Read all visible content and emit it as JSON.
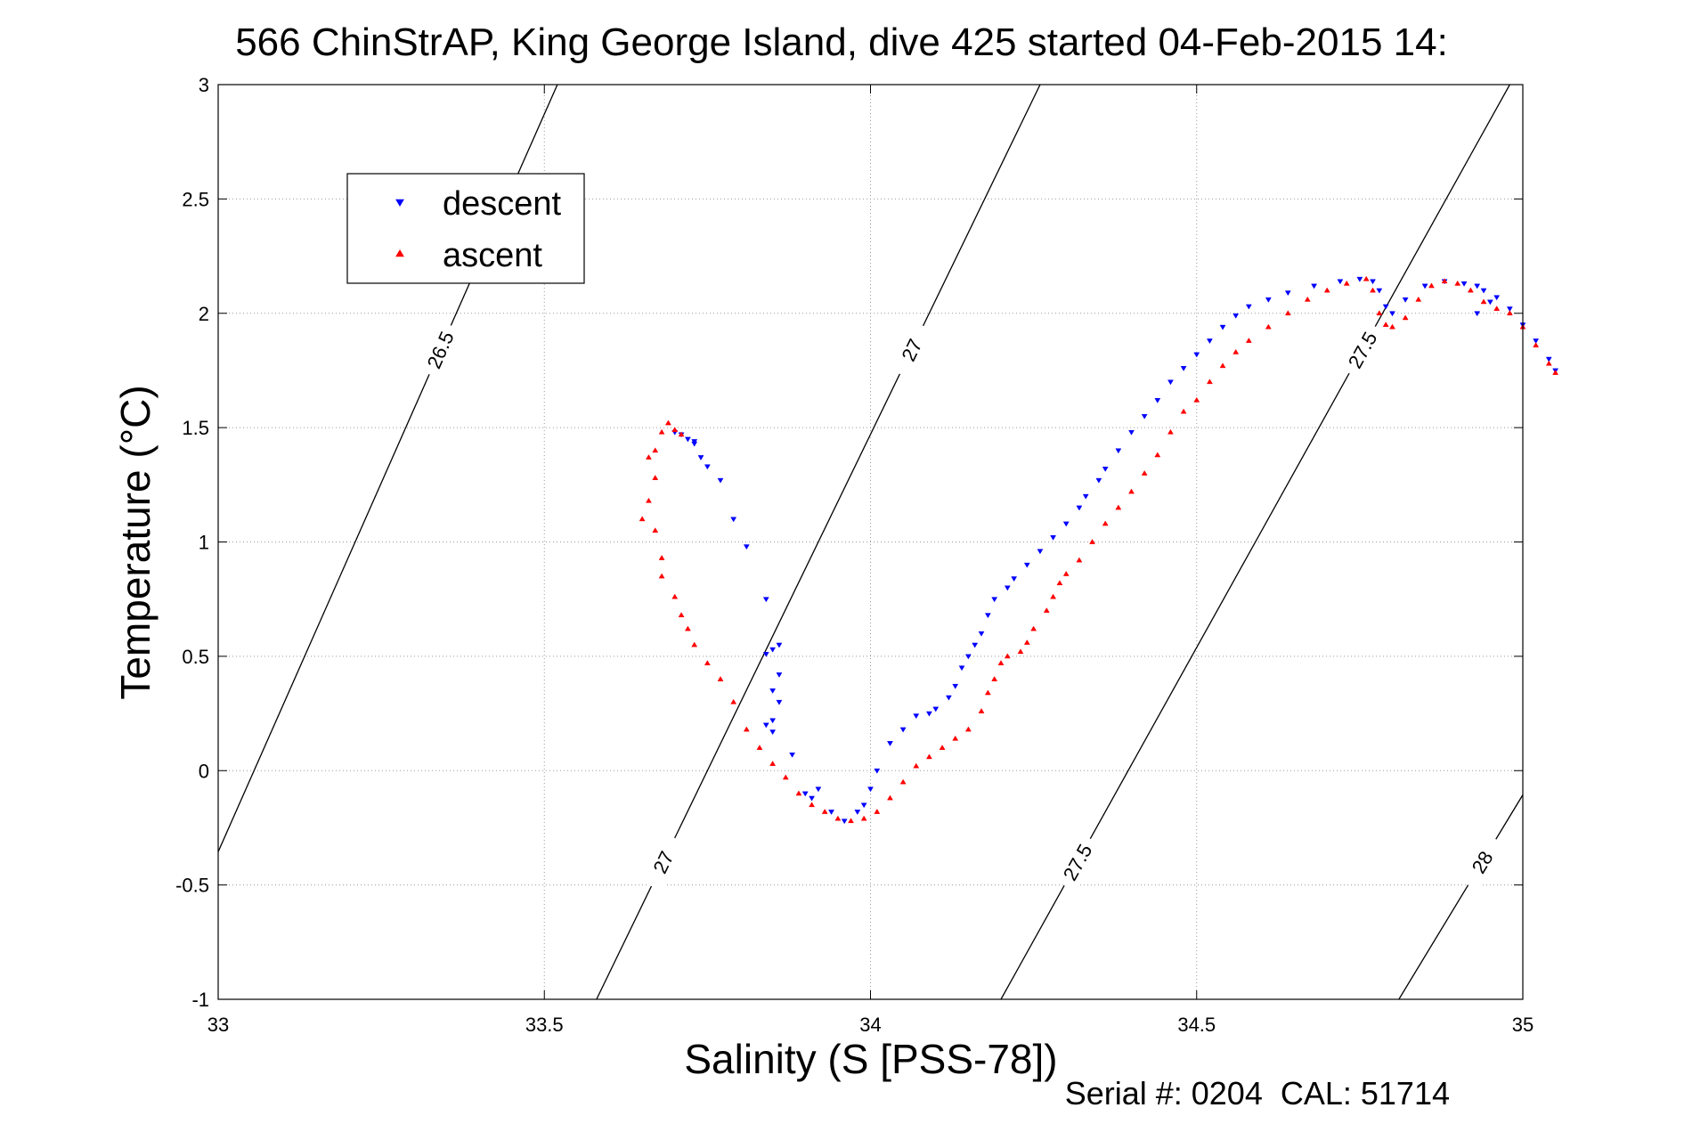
{
  "chart_data": {
    "type": "scatter",
    "title": "566 ChinStrAP, King George Island, dive 425 started 04-Feb-2015 14:",
    "xlabel": "Salinity (S [PSS-78])",
    "ylabel": "Temperature (°C)",
    "footer": "Serial #: 0204  CAL: 51714",
    "xlim": [
      33,
      35
    ],
    "ylim": [
      -1,
      3
    ],
    "xticks": [
      33,
      33.5,
      34,
      34.5,
      35
    ],
    "yticks": [
      -1,
      -0.5,
      0,
      0.5,
      1,
      1.5,
      2,
      2.5,
      3
    ],
    "grid": true,
    "legend_position": "top-left",
    "series": [
      {
        "name": "descent",
        "color": "#0000ff",
        "marker": "triangle-down",
        "points": [
          [
            33.7,
            1.48
          ],
          [
            33.71,
            1.47
          ],
          [
            33.72,
            1.45
          ],
          [
            33.73,
            1.44
          ],
          [
            33.73,
            1.43
          ],
          [
            33.74,
            1.37
          ],
          [
            33.75,
            1.33
          ],
          [
            33.77,
            1.27
          ],
          [
            33.79,
            1.1
          ],
          [
            33.81,
            0.98
          ],
          [
            33.84,
            0.75
          ],
          [
            33.85,
            0.53
          ],
          [
            33.84,
            0.51
          ],
          [
            33.86,
            0.55
          ],
          [
            33.86,
            0.42
          ],
          [
            33.85,
            0.35
          ],
          [
            33.86,
            0.3
          ],
          [
            33.85,
            0.22
          ],
          [
            33.84,
            0.2
          ],
          [
            33.85,
            0.17
          ],
          [
            33.88,
            0.07
          ],
          [
            33.9,
            -0.1
          ],
          [
            33.91,
            -0.12
          ],
          [
            33.92,
            -0.08
          ],
          [
            33.94,
            -0.18
          ],
          [
            33.96,
            -0.22
          ],
          [
            33.98,
            -0.18
          ],
          [
            33.99,
            -0.15
          ],
          [
            34.0,
            -0.08
          ],
          [
            34.01,
            0.0
          ],
          [
            34.03,
            0.12
          ],
          [
            34.05,
            0.18
          ],
          [
            34.07,
            0.24
          ],
          [
            34.09,
            0.25
          ],
          [
            34.1,
            0.27
          ],
          [
            34.12,
            0.32
          ],
          [
            34.13,
            0.37
          ],
          [
            34.14,
            0.45
          ],
          [
            34.15,
            0.5
          ],
          [
            34.16,
            0.55
          ],
          [
            34.17,
            0.6
          ],
          [
            34.18,
            0.68
          ],
          [
            34.19,
            0.75
          ],
          [
            34.21,
            0.8
          ],
          [
            34.22,
            0.84
          ],
          [
            34.24,
            0.9
          ],
          [
            34.26,
            0.96
          ],
          [
            34.28,
            1.02
          ],
          [
            34.3,
            1.08
          ],
          [
            34.32,
            1.15
          ],
          [
            34.33,
            1.2
          ],
          [
            34.35,
            1.27
          ],
          [
            34.36,
            1.32
          ],
          [
            34.38,
            1.4
          ],
          [
            34.4,
            1.48
          ],
          [
            34.42,
            1.55
          ],
          [
            34.44,
            1.62
          ],
          [
            34.46,
            1.7
          ],
          [
            34.48,
            1.76
          ],
          [
            34.5,
            1.82
          ],
          [
            34.52,
            1.88
          ],
          [
            34.54,
            1.94
          ],
          [
            34.56,
            1.99
          ],
          [
            34.58,
            2.03
          ],
          [
            34.61,
            2.06
          ],
          [
            34.64,
            2.09
          ],
          [
            34.68,
            2.12
          ],
          [
            34.72,
            2.14
          ],
          [
            34.75,
            2.15
          ],
          [
            34.77,
            2.14
          ],
          [
            34.78,
            2.1
          ],
          [
            34.79,
            2.03
          ],
          [
            34.8,
            2.0
          ],
          [
            34.82,
            2.06
          ],
          [
            34.85,
            2.12
          ],
          [
            34.88,
            2.14
          ],
          [
            34.91,
            2.13
          ],
          [
            34.93,
            2.12
          ],
          [
            34.94,
            2.1
          ],
          [
            34.95,
            2.05
          ],
          [
            34.93,
            2.0
          ],
          [
            34.96,
            2.07
          ],
          [
            34.98,
            2.02
          ],
          [
            35.0,
            1.95
          ],
          [
            35.02,
            1.88
          ],
          [
            35.04,
            1.8
          ],
          [
            35.05,
            1.75
          ]
        ]
      },
      {
        "name": "ascent",
        "color": "#ff0000",
        "marker": "triangle-up",
        "points": [
          [
            33.69,
            1.52
          ],
          [
            33.68,
            1.48
          ],
          [
            33.7,
            1.49
          ],
          [
            33.71,
            1.47
          ],
          [
            33.67,
            1.4
          ],
          [
            33.66,
            1.37
          ],
          [
            33.67,
            1.28
          ],
          [
            33.66,
            1.18
          ],
          [
            33.65,
            1.1
          ],
          [
            33.67,
            1.05
          ],
          [
            33.68,
            0.93
          ],
          [
            33.68,
            0.85
          ],
          [
            33.7,
            0.76
          ],
          [
            33.71,
            0.68
          ],
          [
            33.72,
            0.62
          ],
          [
            33.73,
            0.55
          ],
          [
            33.75,
            0.47
          ],
          [
            33.77,
            0.4
          ],
          [
            33.79,
            0.3
          ],
          [
            33.81,
            0.18
          ],
          [
            33.83,
            0.1
          ],
          [
            33.85,
            0.03
          ],
          [
            33.87,
            -0.03
          ],
          [
            33.89,
            -0.1
          ],
          [
            33.91,
            -0.15
          ],
          [
            33.93,
            -0.18
          ],
          [
            33.95,
            -0.21
          ],
          [
            33.97,
            -0.22
          ],
          [
            33.99,
            -0.21
          ],
          [
            34.01,
            -0.18
          ],
          [
            34.03,
            -0.12
          ],
          [
            34.05,
            -0.05
          ],
          [
            34.07,
            0.02
          ],
          [
            34.09,
            0.06
          ],
          [
            34.11,
            0.1
          ],
          [
            34.13,
            0.14
          ],
          [
            34.15,
            0.18
          ],
          [
            34.17,
            0.26
          ],
          [
            34.18,
            0.34
          ],
          [
            34.19,
            0.4
          ],
          [
            34.2,
            0.47
          ],
          [
            34.21,
            0.5
          ],
          [
            34.23,
            0.52
          ],
          [
            34.24,
            0.56
          ],
          [
            34.25,
            0.62
          ],
          [
            34.27,
            0.7
          ],
          [
            34.28,
            0.76
          ],
          [
            34.29,
            0.82
          ],
          [
            34.3,
            0.86
          ],
          [
            34.32,
            0.92
          ],
          [
            34.34,
            1.0
          ],
          [
            34.36,
            1.08
          ],
          [
            34.38,
            1.15
          ],
          [
            34.4,
            1.22
          ],
          [
            34.42,
            1.3
          ],
          [
            34.44,
            1.38
          ],
          [
            34.46,
            1.48
          ],
          [
            34.48,
            1.57
          ],
          [
            34.5,
            1.62
          ],
          [
            34.52,
            1.7
          ],
          [
            34.54,
            1.77
          ],
          [
            34.56,
            1.83
          ],
          [
            34.58,
            1.88
          ],
          [
            34.61,
            1.94
          ],
          [
            34.64,
            2.0
          ],
          [
            34.67,
            2.06
          ],
          [
            34.7,
            2.1
          ],
          [
            34.73,
            2.13
          ],
          [
            34.76,
            2.15
          ],
          [
            34.77,
            2.1
          ],
          [
            34.78,
            2.0
          ],
          [
            34.79,
            1.95
          ],
          [
            34.8,
            1.94
          ],
          [
            34.82,
            1.98
          ],
          [
            34.84,
            2.06
          ],
          [
            34.86,
            2.12
          ],
          [
            34.88,
            2.14
          ],
          [
            34.9,
            2.13
          ],
          [
            34.92,
            2.1
          ],
          [
            34.94,
            2.05
          ],
          [
            34.96,
            2.02
          ],
          [
            34.98,
            2.0
          ],
          [
            35.0,
            1.94
          ],
          [
            35.02,
            1.86
          ],
          [
            35.04,
            1.78
          ],
          [
            35.05,
            1.74
          ]
        ]
      }
    ],
    "isopycnals": [
      {
        "label": "26.5",
        "x_at_ymin": 32.9,
        "x_at_ymax": 33.52
      },
      {
        "label": "27",
        "x_at_ymin": 33.58,
        "x_at_ymax": 34.26
      },
      {
        "label": "27.5",
        "x_at_ymin": 34.2,
        "x_at_ymax": 34.98
      },
      {
        "label": "28",
        "x_at_ymin": 34.81,
        "x_at_ymax": 35.66
      }
    ]
  }
}
